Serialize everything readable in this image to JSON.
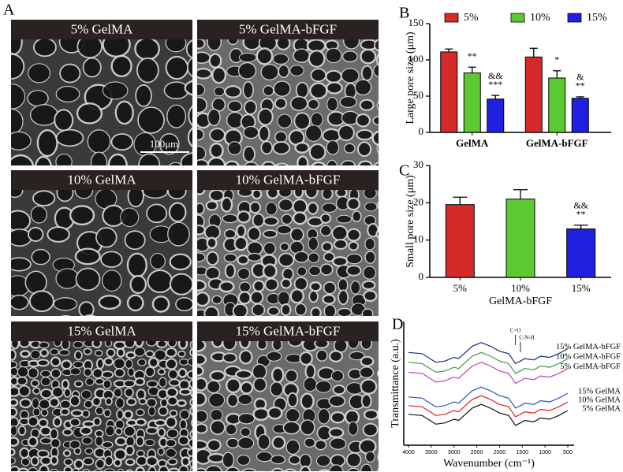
{
  "panel_a": {
    "label": "A",
    "images": [
      {
        "title": "5% GelMA"
      },
      {
        "title": "5% GelMA-bFGF"
      },
      {
        "title": "10% GelMA"
      },
      {
        "title": "10% GelMA-bFGF"
      },
      {
        "title": "15% GelMA"
      },
      {
        "title": "15% GelMA-bFGF"
      }
    ],
    "scale_bar": "100μm"
  },
  "chart_data": [
    {
      "type": "bar",
      "panel_label": "B",
      "ylabel": "Large pore size (μm)",
      "categories": [
        "GelMA",
        "GelMA-bFGF"
      ],
      "series": [
        {
          "name": "5%",
          "color": "#d42a2a",
          "values": [
            111,
            104
          ],
          "errors": [
            4,
            12
          ]
        },
        {
          "name": "10%",
          "color": "#5cc832",
          "values": [
            82,
            75
          ],
          "errors": [
            8,
            10
          ],
          "annotations": [
            [
              "**"
            ],
            [
              "*"
            ]
          ]
        },
        {
          "name": "15%",
          "color": "#2020e0",
          "values": [
            46,
            47
          ],
          "errors": [
            5,
            2
          ],
          "annotations": [
            [
              "&&",
              "***"
            ],
            [
              "&",
              "**"
            ]
          ]
        }
      ],
      "ylim": [
        0,
        150
      ],
      "yticks": [
        0,
        50,
        100,
        150
      ]
    },
    {
      "type": "bar",
      "panel_label": "C",
      "ylabel": "Small pore size (μm)",
      "xlabel": "GelMA-bFGF",
      "categories": [
        "5%",
        "10%",
        "15%"
      ],
      "values": [
        19.5,
        21,
        13
      ],
      "errors": [
        2,
        2.5,
        1
      ],
      "colors": [
        "#d42a2a",
        "#5cc832",
        "#2020e0"
      ],
      "annotations": [
        null,
        null,
        [
          "&&",
          "**"
        ]
      ],
      "ylim": [
        0,
        30
      ],
      "yticks": [
        0,
        10,
        20,
        30
      ]
    },
    {
      "type": "line",
      "panel_label": "D",
      "ylabel": "Transmittance (a.u.)",
      "xlabel": "Wavenumber (cm⁻¹)",
      "x": [
        4000,
        3700,
        3400,
        3200,
        3000,
        2900,
        2600,
        2400,
        2200,
        2000,
        1800,
        1650,
        1540,
        1450,
        1240,
        1100,
        900,
        700,
        500
      ],
      "series": [
        {
          "name": "15% GelMA-bFGF",
          "color": "#1a2a80",
          "values": [
            75,
            74,
            67,
            68,
            71,
            70,
            80,
            83,
            80,
            76,
            74,
            66,
            68,
            70,
            69,
            72,
            71,
            74,
            78
          ]
        },
        {
          "name": "10% GelMA-bFGF",
          "color": "#3a9a50",
          "values": [
            67,
            66,
            59,
            60,
            63,
            62,
            72,
            75,
            72,
            68,
            66,
            58,
            60,
            62,
            61,
            64,
            63,
            66,
            70
          ]
        },
        {
          "name": "5% GelMA-bFGF",
          "color": "#c040b0",
          "values": [
            59,
            58,
            51,
            52,
            55,
            54,
            64,
            67,
            64,
            60,
            58,
            50,
            52,
            54,
            53,
            56,
            55,
            58,
            62
          ]
        },
        {
          "name": "15% GelMA",
          "color": "#3050c0",
          "values": [
            39,
            38,
            31,
            32,
            35,
            34,
            44,
            47,
            44,
            40,
            38,
            30,
            32,
            34,
            33,
            36,
            35,
            38,
            42
          ]
        },
        {
          "name": "10% GelMA",
          "color": "#e02020",
          "values": [
            32,
            31,
            24,
            25,
            28,
            27,
            37,
            40,
            37,
            33,
            31,
            23,
            25,
            27,
            26,
            29,
            28,
            31,
            35
          ]
        },
        {
          "name": "5% GelMA",
          "color": "#111111",
          "values": [
            25,
            24,
            17,
            18,
            21,
            20,
            30,
            33,
            30,
            26,
            24,
            16,
            18,
            20,
            19,
            22,
            21,
            24,
            28
          ]
        }
      ],
      "annotations": [
        {
          "text": "C=O",
          "x": 1650
        },
        {
          "text": "C-N-H",
          "x": 1540
        }
      ],
      "xlim": [
        4000,
        500
      ],
      "xticks": [
        4000,
        3500,
        3000,
        2500,
        2000,
        1500,
        1000,
        500
      ],
      "ylim": [
        0,
        100
      ]
    }
  ]
}
